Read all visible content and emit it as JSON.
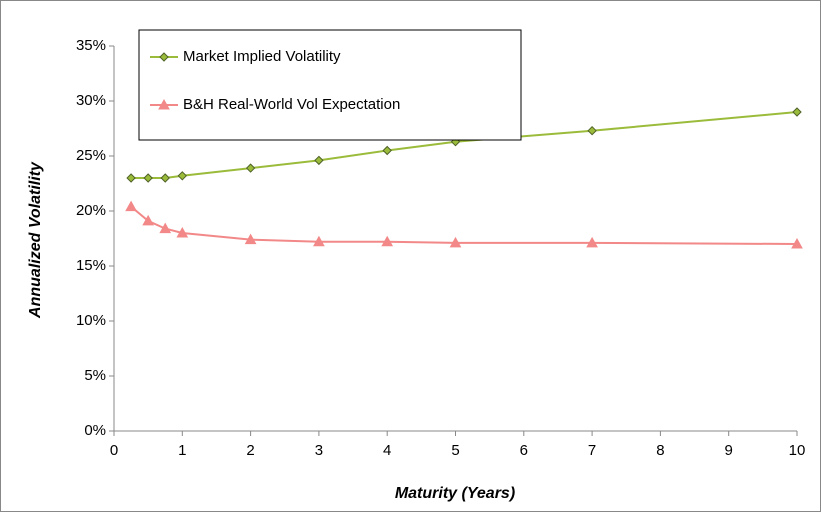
{
  "chart_data": {
    "type": "line",
    "x_label": "Maturity (Years)",
    "y_label": "Annualized Volatility",
    "x": [
      0.25,
      0.5,
      0.75,
      1,
      2,
      3,
      4,
      5,
      7,
      10
    ],
    "series": [
      {
        "name": "Market Implied Volatility",
        "color": "#9bbb3b",
        "marker": "diamond",
        "values": [
          23.0,
          23.0,
          23.0,
          23.2,
          23.9,
          24.6,
          25.5,
          26.3,
          27.3,
          29.0
        ]
      },
      {
        "name": "B&H Real-World Vol Expectation",
        "color": "#f28888",
        "marker": "triangle",
        "values": [
          20.4,
          19.1,
          18.4,
          18.0,
          17.4,
          17.2,
          17.2,
          17.1,
          17.1,
          17.0
        ]
      }
    ],
    "xlim": [
      0,
      10
    ],
    "xticks": [
      0,
      1,
      2,
      3,
      4,
      5,
      6,
      7,
      8,
      9,
      10
    ],
    "ylim": [
      0,
      35
    ],
    "yticks": [
      {
        "value": 0,
        "label": "0%"
      },
      {
        "value": 5,
        "label": "5%"
      },
      {
        "value": 10,
        "label": "10%"
      },
      {
        "value": 15,
        "label": "15%"
      },
      {
        "value": 20,
        "label": "20%"
      },
      {
        "value": 25,
        "label": "25%"
      },
      {
        "value": 30,
        "label": "30%"
      },
      {
        "value": 35,
        "label": "35%"
      }
    ],
    "grid": false,
    "legend": "upper left"
  }
}
